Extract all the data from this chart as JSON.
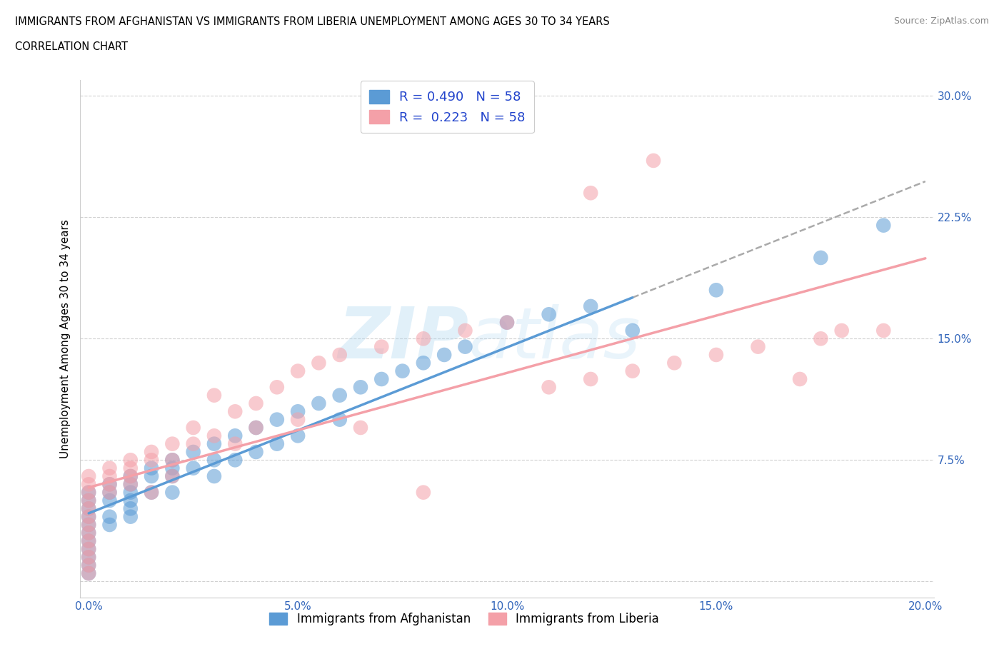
{
  "title_line1": "IMMIGRANTS FROM AFGHANISTAN VS IMMIGRANTS FROM LIBERIA UNEMPLOYMENT AMONG AGES 30 TO 34 YEARS",
  "title_line2": "CORRELATION CHART",
  "source_text": "Source: ZipAtlas.com",
  "ylabel": "Unemployment Among Ages 30 to 34 years",
  "xlim": [
    -0.002,
    0.202
  ],
  "ylim": [
    -0.01,
    0.31
  ],
  "xticks": [
    0.0,
    0.05,
    0.1,
    0.15,
    0.2
  ],
  "xtick_labels": [
    "0.0%",
    "5.0%",
    "10.0%",
    "15.0%",
    "20.0%"
  ],
  "yticks": [
    0.0,
    0.075,
    0.15,
    0.225,
    0.3
  ],
  "ytick_labels": [
    "",
    "7.5%",
    "15.0%",
    "22.5%",
    "30.0%"
  ],
  "R_afghanistan": 0.49,
  "R_liberia": 0.223,
  "N": 58,
  "color_afghanistan": "#5b9bd5",
  "color_liberia": "#f4a0a8",
  "legend_label_afghanistan": "Immigrants from Afghanistan",
  "legend_label_liberia": "Immigrants from Liberia",
  "afghanistan_x": [
    0.0,
    0.0,
    0.0,
    0.0,
    0.0,
    0.0,
    0.0,
    0.0,
    0.0,
    0.0,
    0.0,
    0.005,
    0.005,
    0.005,
    0.005,
    0.005,
    0.01,
    0.01,
    0.01,
    0.01,
    0.01,
    0.01,
    0.015,
    0.015,
    0.015,
    0.02,
    0.02,
    0.02,
    0.02,
    0.025,
    0.025,
    0.03,
    0.03,
    0.03,
    0.035,
    0.035,
    0.04,
    0.04,
    0.045,
    0.045,
    0.05,
    0.05,
    0.055,
    0.06,
    0.06,
    0.065,
    0.07,
    0.075,
    0.08,
    0.085,
    0.09,
    0.1,
    0.11,
    0.12,
    0.13,
    0.15,
    0.175,
    0.19
  ],
  "afghanistan_y": [
    0.05,
    0.055,
    0.045,
    0.04,
    0.035,
    0.03,
    0.025,
    0.02,
    0.015,
    0.01,
    0.005,
    0.06,
    0.055,
    0.05,
    0.04,
    0.035,
    0.065,
    0.06,
    0.055,
    0.05,
    0.045,
    0.04,
    0.07,
    0.065,
    0.055,
    0.075,
    0.07,
    0.065,
    0.055,
    0.08,
    0.07,
    0.085,
    0.075,
    0.065,
    0.09,
    0.075,
    0.095,
    0.08,
    0.1,
    0.085,
    0.105,
    0.09,
    0.11,
    0.115,
    0.1,
    0.12,
    0.125,
    0.13,
    0.135,
    0.14,
    0.145,
    0.16,
    0.165,
    0.17,
    0.155,
    0.18,
    0.2,
    0.22
  ],
  "liberia_x": [
    0.0,
    0.0,
    0.0,
    0.0,
    0.0,
    0.0,
    0.0,
    0.0,
    0.0,
    0.0,
    0.0,
    0.0,
    0.0,
    0.005,
    0.005,
    0.005,
    0.005,
    0.01,
    0.01,
    0.01,
    0.01,
    0.015,
    0.015,
    0.015,
    0.02,
    0.02,
    0.02,
    0.025,
    0.025,
    0.03,
    0.03,
    0.035,
    0.035,
    0.04,
    0.04,
    0.045,
    0.05,
    0.05,
    0.055,
    0.06,
    0.065,
    0.07,
    0.08,
    0.09,
    0.1,
    0.11,
    0.12,
    0.13,
    0.14,
    0.15,
    0.16,
    0.17,
    0.175,
    0.18,
    0.19,
    0.08,
    0.12,
    0.135
  ],
  "liberia_y": [
    0.06,
    0.055,
    0.05,
    0.045,
    0.04,
    0.035,
    0.03,
    0.025,
    0.02,
    0.015,
    0.01,
    0.005,
    0.065,
    0.07,
    0.065,
    0.06,
    0.055,
    0.075,
    0.07,
    0.065,
    0.06,
    0.08,
    0.075,
    0.055,
    0.085,
    0.075,
    0.065,
    0.095,
    0.085,
    0.09,
    0.115,
    0.105,
    0.085,
    0.11,
    0.095,
    0.12,
    0.13,
    0.1,
    0.135,
    0.14,
    0.095,
    0.145,
    0.15,
    0.155,
    0.16,
    0.12,
    0.125,
    0.13,
    0.135,
    0.14,
    0.145,
    0.125,
    0.15,
    0.155,
    0.155,
    0.055,
    0.24,
    0.26
  ]
}
